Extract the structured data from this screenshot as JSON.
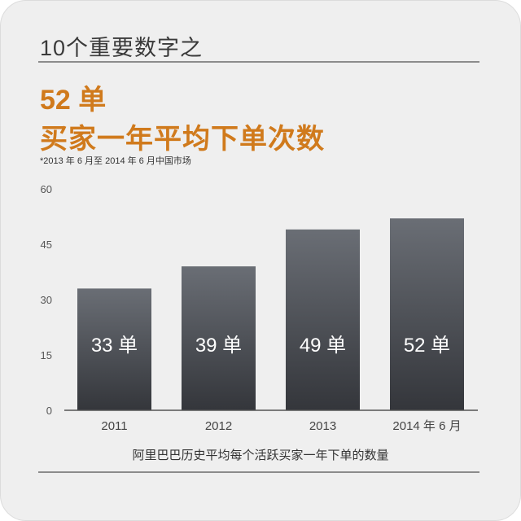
{
  "header": {
    "title": "10个重要数字之",
    "headline": "52 单",
    "subheadline": "买家一年平均下单次数",
    "footnote": "*2013 年 6 月至 2014 年 6 月中国市场"
  },
  "chart_data": {
    "type": "bar",
    "categories": [
      "2011",
      "2012",
      "2013",
      "2014 年 6 月"
    ],
    "values": [
      33,
      39,
      49,
      52
    ],
    "data_labels": [
      "33 单",
      "39 单",
      "49 单",
      "52 单"
    ],
    "yticks": [
      0,
      15,
      30,
      45,
      60
    ],
    "ylim": [
      0,
      60
    ],
    "xlabel": "阿里巴巴历史平均每个活跃买家一年下单的数量",
    "grid": false,
    "bar_color": "#4f5259"
  }
}
